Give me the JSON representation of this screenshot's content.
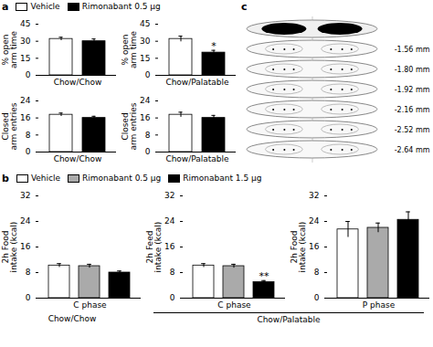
{
  "chart_data": [
    {
      "type": "bar",
      "panel": "a",
      "xlabel": "Chow/Chow",
      "ylabel": "% open\narm time",
      "categories": [
        null
      ],
      "ylim": [
        0,
        45
      ],
      "yticks": [
        0,
        15,
        30,
        45
      ],
      "tick_labels": "y",
      "legend": "upper left",
      "series": [
        {
          "name": "Vehicle",
          "color": "#ffffff",
          "values": [
            32
          ],
          "errors": [
            1.5
          ]
        },
        {
          "name": "Rimonabant 0.5 μg",
          "color": "#000000",
          "values": [
            30
          ],
          "errors": [
            2.0
          ]
        }
      ]
    },
    {
      "type": "bar",
      "panel": "a",
      "xlabel": "Chow/Palatable",
      "ylabel": "% open\narm time",
      "categories": [
        null
      ],
      "ylim": [
        0,
        45
      ],
      "yticks": [
        0,
        15,
        30,
        45
      ],
      "tick_labels": "y",
      "series": [
        {
          "name": "Vehicle",
          "color": "#ffffff",
          "values": [
            32
          ],
          "errors": [
            2.5
          ]
        },
        {
          "name": "Rimonabant 0.5 μg",
          "color": "#000000",
          "values": [
            20
          ],
          "errors": [
            2.0
          ]
        }
      ],
      "annotations": [
        {
          "text": "*",
          "series": "Rimonabant 0.5 μg"
        }
      ]
    },
    {
      "type": "bar",
      "panel": "a",
      "xlabel": "Chow/Chow",
      "ylabel": "Closed\narm entries",
      "categories": [
        null
      ],
      "ylim": [
        0,
        24
      ],
      "yticks": [
        0,
        8,
        16,
        24
      ],
      "tick_labels": "y",
      "series": [
        {
          "name": "Vehicle",
          "color": "#ffffff",
          "values": [
            17.5
          ],
          "errors": [
            0.8
          ]
        },
        {
          "name": "Rimonabant 0.5 μg",
          "color": "#000000",
          "values": [
            16.0
          ],
          "errors": [
            0.8
          ]
        }
      ]
    },
    {
      "type": "bar",
      "panel": "a",
      "xlabel": "Chow/Palatable",
      "ylabel": "Closed\narm entries",
      "categories": [
        null
      ],
      "ylim": [
        0,
        24
      ],
      "yticks": [
        0,
        8,
        16,
        24
      ],
      "tick_labels": "y",
      "series": [
        {
          "name": "Vehicle",
          "color": "#ffffff",
          "values": [
            17.5
          ],
          "errors": [
            1.2
          ]
        },
        {
          "name": "Rimonabant 0.5 μg",
          "color": "#000000",
          "values": [
            16.0
          ],
          "errors": [
            1.2
          ]
        }
      ]
    },
    {
      "type": "diagram",
      "panel": "c",
      "categories": [
        null,
        "-1.56 mm",
        "-1.80 mm",
        "-1.92 mm",
        "-2.16 mm",
        "-2.52 mm",
        "-2.64 mm"
      ]
    },
    {
      "type": "bar",
      "panel": "b",
      "xlabel": "C phase",
      "group": "Chow/Chow",
      "ylabel": "2h Food\nintake (kcal)",
      "categories": [
        null
      ],
      "ylim": [
        0,
        32
      ],
      "yticks": [
        0,
        8,
        16,
        24,
        32
      ],
      "tick_labels": "y",
      "legend": "upper left",
      "series": [
        {
          "name": "Vehicle",
          "color": "#ffffff",
          "values": [
            10.2
          ],
          "errors": [
            0.6
          ]
        },
        {
          "name": "Rimonabant 0.5 μg",
          "color": "#aaaaaa",
          "values": [
            10.0
          ],
          "errors": [
            0.6
          ]
        },
        {
          "name": "Rimonabant 1.5 μg",
          "color": "#000000",
          "values": [
            8.0
          ],
          "errors": [
            0.5
          ]
        }
      ]
    },
    {
      "type": "bar",
      "panel": "b",
      "xlabel": "C phase",
      "group": "Chow/Palatable",
      "ylabel": "2h Feed\nintake (kcal)",
      "categories": [
        null
      ],
      "ylim": [
        0,
        32
      ],
      "yticks": [
        0,
        8,
        16,
        24,
        32
      ],
      "tick_labels": "y",
      "series": [
        {
          "name": "Vehicle",
          "color": "#ffffff",
          "values": [
            10.2
          ],
          "errors": [
            0.6
          ]
        },
        {
          "name": "Rimonabant 0.5 μg",
          "color": "#aaaaaa",
          "values": [
            10.0
          ],
          "errors": [
            0.6
          ]
        },
        {
          "name": "Rimonabant 1.5 μg",
          "color": "#000000",
          "values": [
            5.0
          ],
          "errors": [
            0.5
          ]
        }
      ],
      "annotations": [
        {
          "text": "**",
          "series": "Rimonabant 1.5 μg"
        }
      ]
    },
    {
      "type": "bar",
      "panel": "b",
      "xlabel": "P phase",
      "group": "Chow/Palatable",
      "ylabel": "2h Food\nintake (kcal)",
      "categories": [
        null
      ],
      "ylim": [
        0,
        32
      ],
      "yticks": [
        0,
        8,
        16,
        24,
        32
      ],
      "tick_labels": "y",
      "series": [
        {
          "name": "Vehicle",
          "color": "#ffffff",
          "values": [
            21.5
          ],
          "errors": [
            2.5
          ]
        },
        {
          "name": "Rimonabant 0.5 μg",
          "color": "#aaaaaa",
          "values": [
            22.0
          ],
          "errors": [
            1.5
          ]
        },
        {
          "name": "Rimonabant 1.5 μg",
          "color": "#000000",
          "values": [
            24.5
          ],
          "errors": [
            2.5
          ]
        }
      ]
    }
  ]
}
